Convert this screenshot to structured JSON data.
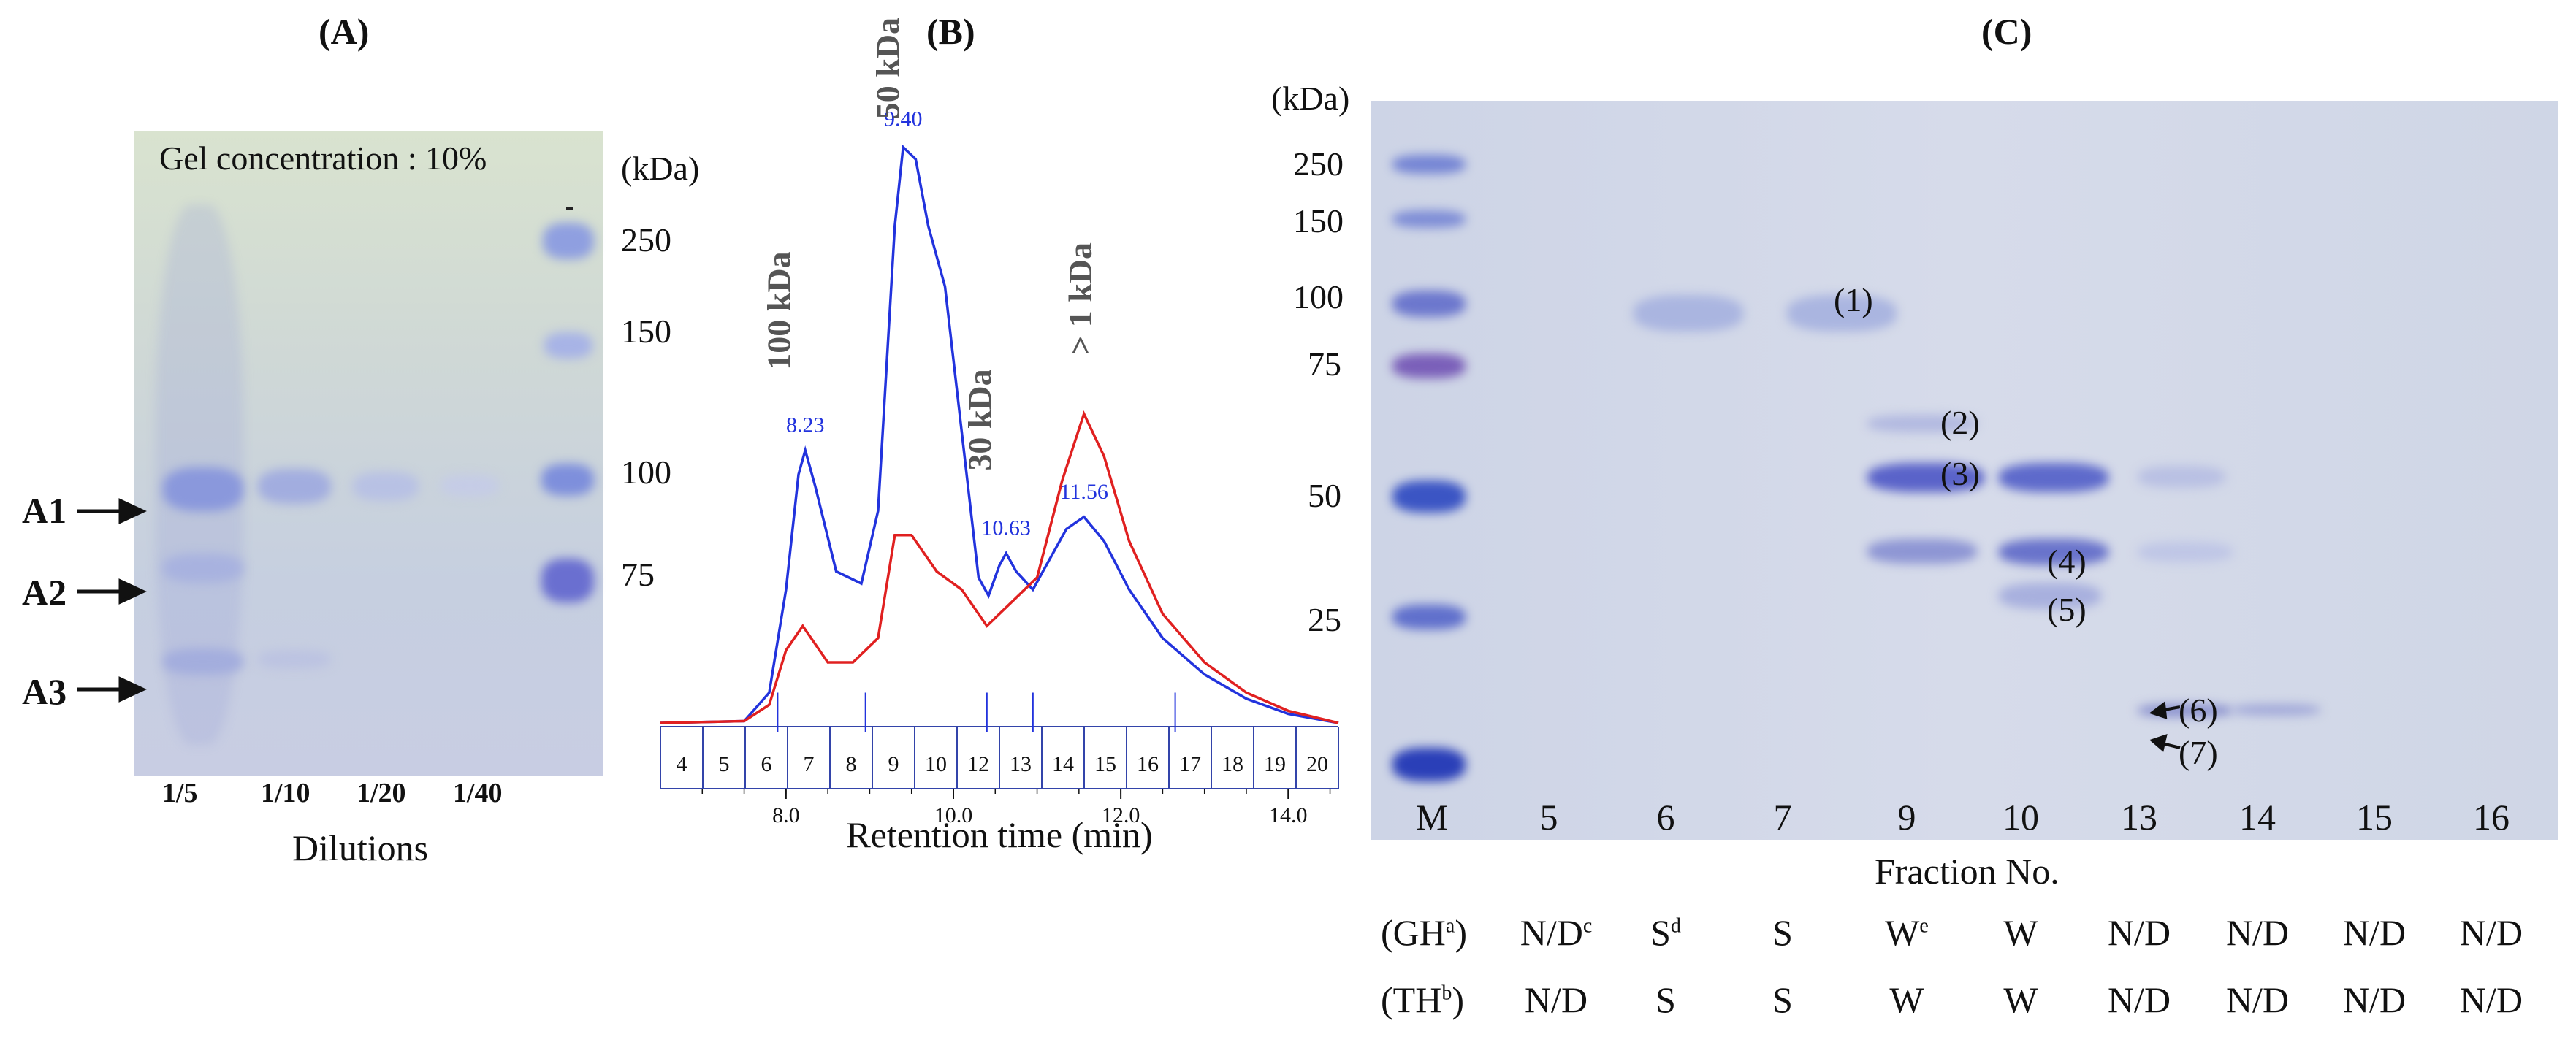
{
  "panel_a": {
    "label": "(A)",
    "gel_concentration": "Gel concentration : 10%",
    "kda_unit": "(kDa)",
    "markers": [
      "250",
      "150",
      "100",
      "75"
    ],
    "band_labels": [
      "A1",
      "A2",
      "A3"
    ],
    "dilutions": [
      "1/5",
      "1/10",
      "1/20",
      "1/40"
    ],
    "xlabel": "Dilutions"
  },
  "panel_b": {
    "label": "(B)",
    "chart_data": {
      "type": "line",
      "title": "(B)",
      "xlabel": "Retention time (min)",
      "ylabel": "",
      "xlim": [
        6.5,
        14.6
      ],
      "ylim": [
        0,
        1
      ],
      "x_ticks": [
        "8.0",
        "10.0",
        "12.0",
        "14.0"
      ],
      "fraction_numbers": [
        "4",
        "5",
        "6",
        "7",
        "8",
        "9",
        "10",
        "12",
        "13",
        "14",
        "15",
        "16",
        "17",
        "18",
        "19",
        "20"
      ],
      "peak_labels": [
        "8.23",
        "9.40",
        "10.63",
        "11.56"
      ],
      "annotations": [
        "100 kDa",
        "50 kDa",
        "30 kDa",
        "> 1 kDa"
      ],
      "series": [
        {
          "name": "blue",
          "color": "#2233dd",
          "x": [
            6.5,
            7.5,
            7.8,
            8.0,
            8.15,
            8.23,
            8.35,
            8.6,
            8.9,
            9.1,
            9.3,
            9.4,
            9.55,
            9.7,
            9.9,
            10.1,
            10.3,
            10.42,
            10.55,
            10.63,
            10.75,
            10.95,
            11.15,
            11.35,
            11.56,
            11.8,
            12.1,
            12.5,
            13.0,
            13.5,
            14.0,
            14.6
          ],
          "y": [
            0.0,
            0.003,
            0.05,
            0.22,
            0.41,
            0.45,
            0.39,
            0.25,
            0.23,
            0.35,
            0.82,
            0.95,
            0.93,
            0.82,
            0.72,
            0.48,
            0.24,
            0.21,
            0.26,
            0.28,
            0.25,
            0.22,
            0.27,
            0.32,
            0.34,
            0.3,
            0.22,
            0.14,
            0.08,
            0.04,
            0.015,
            0.0
          ]
        },
        {
          "name": "red",
          "color": "#e02020",
          "x": [
            6.5,
            7.5,
            7.8,
            8.0,
            8.2,
            8.5,
            8.8,
            9.1,
            9.3,
            9.5,
            9.8,
            10.1,
            10.4,
            10.7,
            11.0,
            11.3,
            11.56,
            11.8,
            12.1,
            12.5,
            13.0,
            13.5,
            14.0,
            14.6
          ],
          "y": [
            0.0,
            0.003,
            0.03,
            0.12,
            0.16,
            0.1,
            0.1,
            0.14,
            0.31,
            0.31,
            0.25,
            0.22,
            0.16,
            0.2,
            0.24,
            0.4,
            0.51,
            0.44,
            0.3,
            0.18,
            0.1,
            0.05,
            0.02,
            0.0
          ]
        }
      ]
    }
  },
  "panel_c": {
    "label": "(C)",
    "kda_unit": "(kDa)",
    "markers": [
      "250",
      "150",
      "100",
      "75",
      "50",
      "25"
    ],
    "band_annotations": [
      "(1)",
      "(2)",
      "(3)",
      "(4)",
      "(5)",
      "(6)",
      "(7)"
    ],
    "lanes": [
      "M",
      "5",
      "6",
      "7",
      "9",
      "10",
      "13",
      "14",
      "15",
      "16"
    ],
    "xlabel": "Fraction No.",
    "table": {
      "rows": [
        {
          "label_main": "(GH",
          "label_sup": "a",
          "label_end": ")",
          "cells": [
            {
              "t": "N/D",
              "s": "c"
            },
            {
              "t": "S",
              "s": "d"
            },
            {
              "t": "S",
              "s": ""
            },
            {
              "t": "W",
              "s": "e"
            },
            {
              "t": "W",
              "s": ""
            },
            {
              "t": "N/D",
              "s": ""
            },
            {
              "t": "N/D",
              "s": ""
            },
            {
              "t": "N/D",
              "s": ""
            },
            {
              "t": "N/D",
              "s": ""
            }
          ]
        },
        {
          "label_main": "(TH",
          "label_sup": "b",
          "label_end": ")",
          "cells": [
            {
              "t": "N/D",
              "s": ""
            },
            {
              "t": "S",
              "s": ""
            },
            {
              "t": "S",
              "s": ""
            },
            {
              "t": "W",
              "s": ""
            },
            {
              "t": "W",
              "s": ""
            },
            {
              "t": "N/D",
              "s": ""
            },
            {
              "t": "N/D",
              "s": ""
            },
            {
              "t": "N/D",
              "s": ""
            },
            {
              "t": "N/D",
              "s": ""
            }
          ]
        }
      ]
    }
  }
}
